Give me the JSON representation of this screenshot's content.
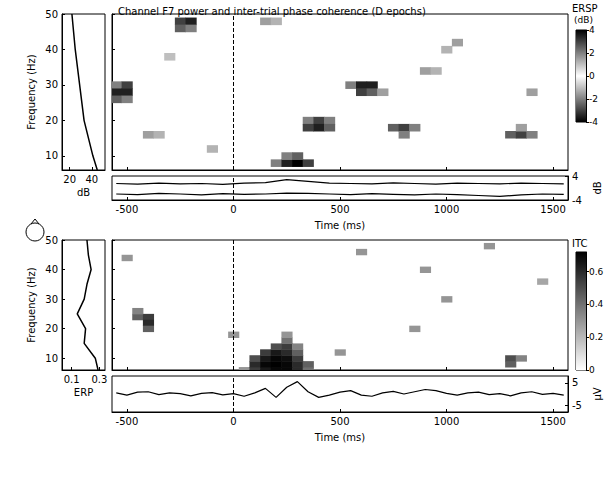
{
  "chart_data": [
    {
      "type": "heatmap",
      "title": "Channel F7 power and inter-trial phase coherence (D epochs)",
      "xlim": [
        -570,
        1570
      ],
      "xticks": [
        -500,
        0,
        500,
        1000,
        1500
      ],
      "ylim": [
        6,
        50
      ],
      "yticks": [
        10,
        20,
        30,
        40,
        50
      ],
      "tick_labels": false,
      "event_line": 0,
      "cell_size": [
        50,
        2
      ],
      "cells": [
        [
          -550,
          30,
          -2
        ],
        [
          -500,
          30,
          -3
        ],
        [
          -550,
          28,
          -3.5
        ],
        [
          -500,
          28,
          -3.5
        ],
        [
          -550,
          26,
          -2.5
        ],
        [
          -500,
          26,
          -2
        ],
        [
          -250,
          48,
          3
        ],
        [
          -200,
          48,
          3.5
        ],
        [
          -250,
          46,
          2.5
        ],
        [
          -200,
          46,
          2
        ],
        [
          -400,
          16,
          1.5
        ],
        [
          -350,
          16,
          1.2
        ],
        [
          150,
          48,
          1.5
        ],
        [
          200,
          48,
          1.2
        ],
        [
          550,
          30,
          2
        ],
        [
          600,
          30,
          3.5
        ],
        [
          650,
          30,
          3.5
        ],
        [
          600,
          28,
          3
        ],
        [
          650,
          28,
          2.5
        ],
        [
          700,
          28,
          1.5
        ],
        [
          350,
          20,
          2
        ],
        [
          400,
          20,
          3
        ],
        [
          450,
          20,
          2
        ],
        [
          350,
          18,
          3
        ],
        [
          400,
          18,
          3.5
        ],
        [
          450,
          18,
          2.5
        ],
        [
          200,
          8,
          2
        ],
        [
          250,
          8,
          3.5
        ],
        [
          300,
          8,
          4
        ],
        [
          350,
          8,
          3
        ],
        [
          250,
          10,
          2
        ],
        [
          300,
          10,
          2.5
        ],
        [
          750,
          18,
          2.5
        ],
        [
          800,
          18,
          3
        ],
        [
          850,
          18,
          2
        ],
        [
          800,
          16,
          2
        ],
        [
          1300,
          16,
          2.5
        ],
        [
          1350,
          16,
          3
        ],
        [
          1400,
          16,
          2
        ],
        [
          1350,
          18,
          1.5
        ],
        [
          900,
          34,
          1.5
        ],
        [
          950,
          34,
          1.2
        ],
        [
          1400,
          28,
          1.5
        ],
        [
          1000,
          40,
          1.2
        ],
        [
          1050,
          42,
          1.5
        ],
        [
          -100,
          12,
          1.2
        ],
        [
          -300,
          38,
          1
        ]
      ],
      "colorbar": {
        "title": "ERSP",
        "unit": "(dB)",
        "range": [
          -4,
          4
        ],
        "ticks": [
          -4,
          -2,
          0,
          2,
          4
        ]
      },
      "spectrum": {
        "type": "line",
        "y": [
          6,
          10,
          15,
          20,
          25,
          30,
          35,
          40,
          45,
          50
        ],
        "values": [
          45,
          41,
          37,
          33,
          31,
          29,
          27,
          25,
          23.5,
          22
        ],
        "color": "#000000",
        "xlim": [
          13,
          52
        ],
        "xticks": [
          20,
          40
        ],
        "xlabel": "dB",
        "ylim": [
          6,
          50
        ],
        "yticks": [
          10,
          20,
          30,
          40,
          50
        ],
        "ylabel": "Frequency (Hz)"
      },
      "timecourse": {
        "type": "line",
        "x": [
          -550,
          -450,
          -350,
          -250,
          -150,
          -50,
          50,
          150,
          250,
          350,
          450,
          550,
          650,
          750,
          850,
          950,
          1050,
          1150,
          1250,
          1350,
          1450,
          1550
        ],
        "series": [
          {
            "color": "#000000",
            "values": [
              1.5,
              1.3,
              1.6,
              1.4,
              1.5,
              1.2,
              1.6,
              1.8,
              2.8,
              2.2,
              1.6,
              1.5,
              1.4,
              1.7,
              1.5,
              1.3,
              1.6,
              1.5,
              1.4,
              1.6,
              1.5,
              1.4
            ]
          },
          {
            "color": "#000000",
            "values": [
              -2.0,
              -2.2,
              -1.8,
              -2.0,
              -2.3,
              -1.9,
              -2.1,
              -2.0,
              -1.7,
              -1.8,
              -2.0,
              -2.2,
              -1.9,
              -2.1,
              -2.3,
              -2.0,
              -2.2,
              -2.5,
              -2.8,
              -2.3,
              -2.0,
              -2.1
            ]
          }
        ],
        "xlim": [
          -570,
          1570
        ],
        "xticks": [
          -500,
          0,
          500,
          1000,
          1500
        ],
        "xlabel": "Time (ms)",
        "ylim": [
          -4,
          4
        ],
        "yticks": [
          -4,
          4
        ],
        "ylabel": "dB"
      }
    },
    {
      "type": "heatmap",
      "xlim": [
        -570,
        1570
      ],
      "xticks": [
        -500,
        0,
        500,
        1000,
        1500
      ],
      "ylim": [
        6,
        50
      ],
      "yticks": [
        10,
        20,
        30,
        40,
        50
      ],
      "tick_labels": false,
      "event_line": 0,
      "cell_size": [
        50,
        2
      ],
      "cells": [
        [
          50,
          6,
          0.3
        ],
        [
          100,
          6,
          0.55
        ],
        [
          150,
          6,
          0.65
        ],
        [
          200,
          6,
          0.7
        ],
        [
          250,
          6,
          0.7
        ],
        [
          300,
          6,
          0.6
        ],
        [
          350,
          6,
          0.4
        ],
        [
          100,
          8,
          0.6
        ],
        [
          150,
          8,
          0.7
        ],
        [
          200,
          8,
          0.72
        ],
        [
          250,
          8,
          0.7
        ],
        [
          300,
          8,
          0.6
        ],
        [
          350,
          8,
          0.45
        ],
        [
          100,
          10,
          0.5
        ],
        [
          150,
          10,
          0.65
        ],
        [
          200,
          10,
          0.7
        ],
        [
          250,
          10,
          0.68
        ],
        [
          300,
          10,
          0.55
        ],
        [
          150,
          12,
          0.55
        ],
        [
          200,
          12,
          0.65
        ],
        [
          250,
          12,
          0.6
        ],
        [
          300,
          12,
          0.45
        ],
        [
          200,
          14,
          0.5
        ],
        [
          250,
          14,
          0.55
        ],
        [
          300,
          14,
          0.35
        ],
        [
          250,
          16,
          0.4
        ],
        [
          250,
          18,
          0.3
        ],
        [
          0,
          18,
          0.3
        ],
        [
          -450,
          24,
          0.45
        ],
        [
          -400,
          24,
          0.55
        ],
        [
          -400,
          22,
          0.6
        ],
        [
          -400,
          20,
          0.45
        ],
        [
          -450,
          26,
          0.35
        ],
        [
          1300,
          8,
          0.45
        ],
        [
          1300,
          10,
          0.5
        ],
        [
          1350,
          10,
          0.35
        ],
        [
          500,
          12,
          0.3
        ],
        [
          900,
          40,
          0.3
        ],
        [
          850,
          20,
          0.3
        ],
        [
          1000,
          30,
          0.3
        ],
        [
          1450,
          36,
          0.25
        ],
        [
          -500,
          44,
          0.3
        ],
        [
          1200,
          48,
          0.3
        ],
        [
          600,
          46,
          0.3
        ]
      ],
      "colorbar": {
        "title": "ITC",
        "range": [
          0,
          0.72
        ],
        "ticks": [
          0,
          0.2,
          0.4,
          0.6
        ]
      },
      "spectrum": {
        "type": "line",
        "y": [
          6,
          10,
          15,
          20,
          25,
          30,
          35,
          40,
          45,
          50
        ],
        "values": [
          0.29,
          0.27,
          0.19,
          0.2,
          0.14,
          0.19,
          0.21,
          0.24,
          0.22,
          0.21
        ],
        "color": "#000000",
        "xlim": [
          0.03,
          0.34
        ],
        "xticks": [
          0.1,
          0.3
        ],
        "xlabel": "ERP",
        "ylim": [
          6,
          50
        ],
        "yticks": [
          10,
          20,
          30,
          40,
          50
        ],
        "ylabel": "Frequency (Hz)"
      },
      "timecourse": {
        "type": "line",
        "x": [
          -550,
          -500,
          -450,
          -400,
          -350,
          -300,
          -250,
          -200,
          -150,
          -100,
          -50,
          0,
          50,
          100,
          150,
          200,
          250,
          300,
          350,
          400,
          450,
          500,
          550,
          600,
          650,
          700,
          750,
          800,
          850,
          900,
          950,
          1000,
          1050,
          1100,
          1150,
          1200,
          1250,
          1300,
          1350,
          1400,
          1450,
          1500,
          1550
        ],
        "series": [
          {
            "color": "#000000",
            "values": [
              0.5,
              -0.5,
              0.8,
              1.0,
              -0.3,
              0.5,
              0.2,
              -0.8,
              0.3,
              0.6,
              -0.4,
              0.2,
              -1.0,
              0.5,
              2.5,
              -1.5,
              3.0,
              5.5,
              1.0,
              -1.5,
              -0.5,
              0.8,
              1.5,
              -0.5,
              -1.0,
              0.5,
              1.2,
              0.0,
              1.0,
              2.0,
              1.5,
              0.3,
              -0.5,
              0.5,
              0.8,
              -0.3,
              0.2,
              -0.8,
              0.5,
              1.0,
              -0.2,
              0.3,
              -0.5
            ]
          }
        ],
        "xlim": [
          -570,
          1570
        ],
        "xticks": [
          -500,
          0,
          500,
          1000,
          1500
        ],
        "xlabel": "Time (ms)",
        "ylim": [
          -8,
          8
        ],
        "yticks": [
          -5,
          5
        ],
        "ylabel": "µV"
      }
    }
  ]
}
